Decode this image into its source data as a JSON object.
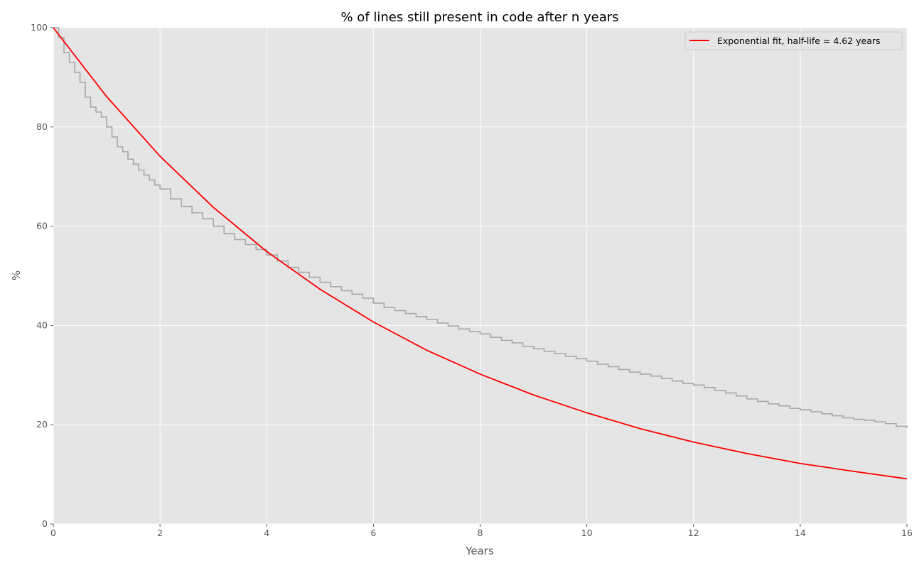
{
  "chart_data": {
    "type": "line",
    "title": "% of lines still present in code after n years",
    "xlabel": "Years",
    "ylabel": "%",
    "xlim": [
      0,
      16
    ],
    "ylim": [
      0,
      100
    ],
    "xticks": [
      "0",
      "2",
      "4",
      "6",
      "8",
      "10",
      "12",
      "14",
      "16"
    ],
    "yticks": [
      "0",
      "20",
      "40",
      "60",
      "80",
      "100"
    ],
    "grid": true,
    "legend_position": "top-right",
    "background_color": "#e5e5e5",
    "series": [
      {
        "color": "#a8a8a8",
        "style": "step",
        "x": [
          0,
          0.1,
          0.2,
          0.3,
          0.4,
          0.5,
          0.6,
          0.7,
          0.8,
          0.9,
          1.0,
          1.1,
          1.2,
          1.3,
          1.4,
          1.5,
          1.6,
          1.7,
          1.8,
          1.9,
          2.0,
          2.2,
          2.4,
          2.6,
          2.8,
          3.0,
          3.2,
          3.4,
          3.6,
          3.8,
          4.0,
          4.2,
          4.4,
          4.6,
          4.8,
          5.0,
          5.2,
          5.4,
          5.6,
          5.8,
          6.0,
          6.2,
          6.4,
          6.6,
          6.8,
          7.0,
          7.2,
          7.4,
          7.6,
          7.8,
          8.0,
          8.2,
          8.4,
          8.6,
          8.8,
          9.0,
          9.2,
          9.4,
          9.6,
          9.8,
          10.0,
          10.2,
          10.4,
          10.6,
          10.8,
          11.0,
          11.2,
          11.4,
          11.6,
          11.8,
          12.0,
          12.2,
          12.4,
          12.6,
          12.8,
          13.0,
          13.2,
          13.4,
          13.6,
          13.8,
          14.0,
          14.2,
          14.4,
          14.6,
          14.8,
          15.0,
          15.2,
          15.4,
          15.6,
          15.8,
          16.0
        ],
        "y": [
          100,
          98,
          95,
          93,
          91,
          89,
          86,
          84,
          83,
          82,
          80,
          78,
          76,
          75,
          73.5,
          72.5,
          71.3,
          70.3,
          69.3,
          68.3,
          67.5,
          65.5,
          64,
          62.7,
          61.5,
          60,
          58.5,
          57.3,
          56.3,
          55.3,
          54.2,
          53,
          51.7,
          50.7,
          49.7,
          48.7,
          47.8,
          47,
          46.3,
          45.5,
          44.5,
          43.6,
          43,
          42.4,
          41.8,
          41.2,
          40.5,
          39.9,
          39.3,
          38.8,
          38.3,
          37.6,
          37,
          36.5,
          35.8,
          35.3,
          34.8,
          34.3,
          33.8,
          33.3,
          32.8,
          32.2,
          31.7,
          31.1,
          30.6,
          30.2,
          29.8,
          29.3,
          28.8,
          28.3,
          28,
          27.5,
          26.9,
          26.4,
          25.8,
          25.2,
          24.7,
          24.2,
          23.8,
          23.3,
          23,
          22.6,
          22.2,
          21.8,
          21.4,
          21.1,
          20.9,
          20.6,
          20.2,
          19.7,
          19.3
        ]
      },
      {
        "name": "Exponential fit, half-life = 4.62 years",
        "color": "#ff0000",
        "style": "line",
        "x": [
          0,
          1,
          2,
          3,
          4,
          5,
          6,
          7,
          8,
          9,
          10,
          11,
          12,
          13,
          14,
          15,
          16
        ],
        "y": [
          100,
          86.1,
          74.1,
          63.8,
          54.9,
          47.3,
          40.7,
          35.0,
          30.2,
          26.0,
          22.4,
          19.2,
          16.5,
          14.2,
          12.2,
          10.6,
          9.1
        ]
      }
    ]
  }
}
